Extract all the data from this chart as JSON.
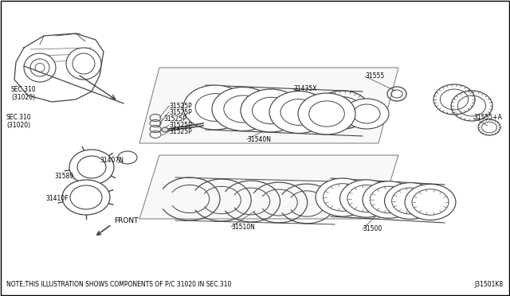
{
  "background_color": "#ffffff",
  "border_color": "#000000",
  "line_color": "#444444",
  "text_color": "#000000",
  "note_text": "NOTE;THIS ILLUSTRATION SHOWS COMPONENTS OF P/C 31020 IN SEC.310",
  "diagram_id": "J31501K8",
  "fig_width": 6.4,
  "fig_height": 3.72,
  "dpi": 100,
  "labels": {
    "sec310": "SEC.310\n(31020)",
    "l31589": "31589",
    "l31407N": "31407N",
    "l31525P": "31525P",
    "l31410F": "31410F",
    "l31540N": "31540N",
    "l31435X": "31435X",
    "l31555": "31555",
    "l31555A": "31555+A",
    "l31510N": "31510N",
    "l31500": "31500",
    "front": "FRONT"
  }
}
